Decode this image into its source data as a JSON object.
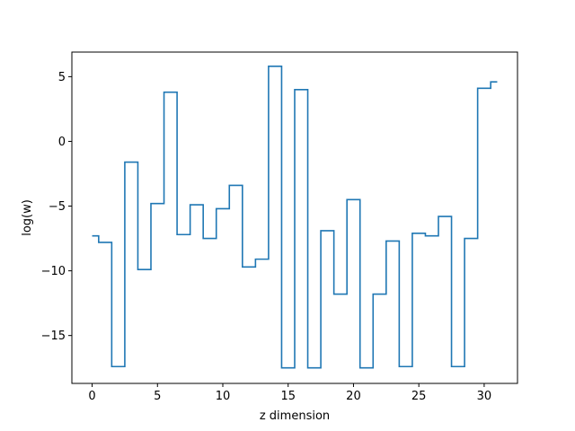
{
  "chart_data": {
    "type": "line",
    "step": "mid",
    "title": "",
    "xlabel": "z dimension",
    "ylabel": "log(w)",
    "xlim": [
      -1.55,
      32.55
    ],
    "ylim": [
      -18.7,
      6.9
    ],
    "xticks": [
      0,
      5,
      10,
      15,
      20,
      25,
      30
    ],
    "yticks": [
      -15,
      -10,
      -5,
      0,
      5
    ],
    "xtick_labels": [
      "0",
      "5",
      "10",
      "15",
      "20",
      "25",
      "30"
    ],
    "ytick_labels": [
      "−15",
      "−10",
      "−5",
      "0",
      "5"
    ],
    "line_color": "#1f77b4",
    "grid": false,
    "series": [
      {
        "x": [
          0,
          1,
          2,
          3,
          4,
          5,
          6,
          7,
          8,
          9,
          10,
          11,
          12,
          13,
          14,
          15,
          16,
          17,
          18,
          19,
          20,
          21,
          22,
          23,
          24,
          25,
          26,
          27,
          28,
          29,
          30,
          31
        ],
        "values": [
          -7.3,
          -7.8,
          -17.4,
          -1.6,
          -9.9,
          -4.8,
          3.8,
          -7.2,
          -4.9,
          -7.5,
          -5.2,
          -3.4,
          -9.7,
          -9.1,
          5.8,
          -17.5,
          4.0,
          -17.5,
          -6.9,
          -11.8,
          -4.5,
          -17.5,
          -11.8,
          -7.7,
          -17.4,
          -7.1,
          -7.3,
          -5.8,
          -17.4,
          -7.5,
          4.1,
          4.6
        ]
      }
    ]
  }
}
